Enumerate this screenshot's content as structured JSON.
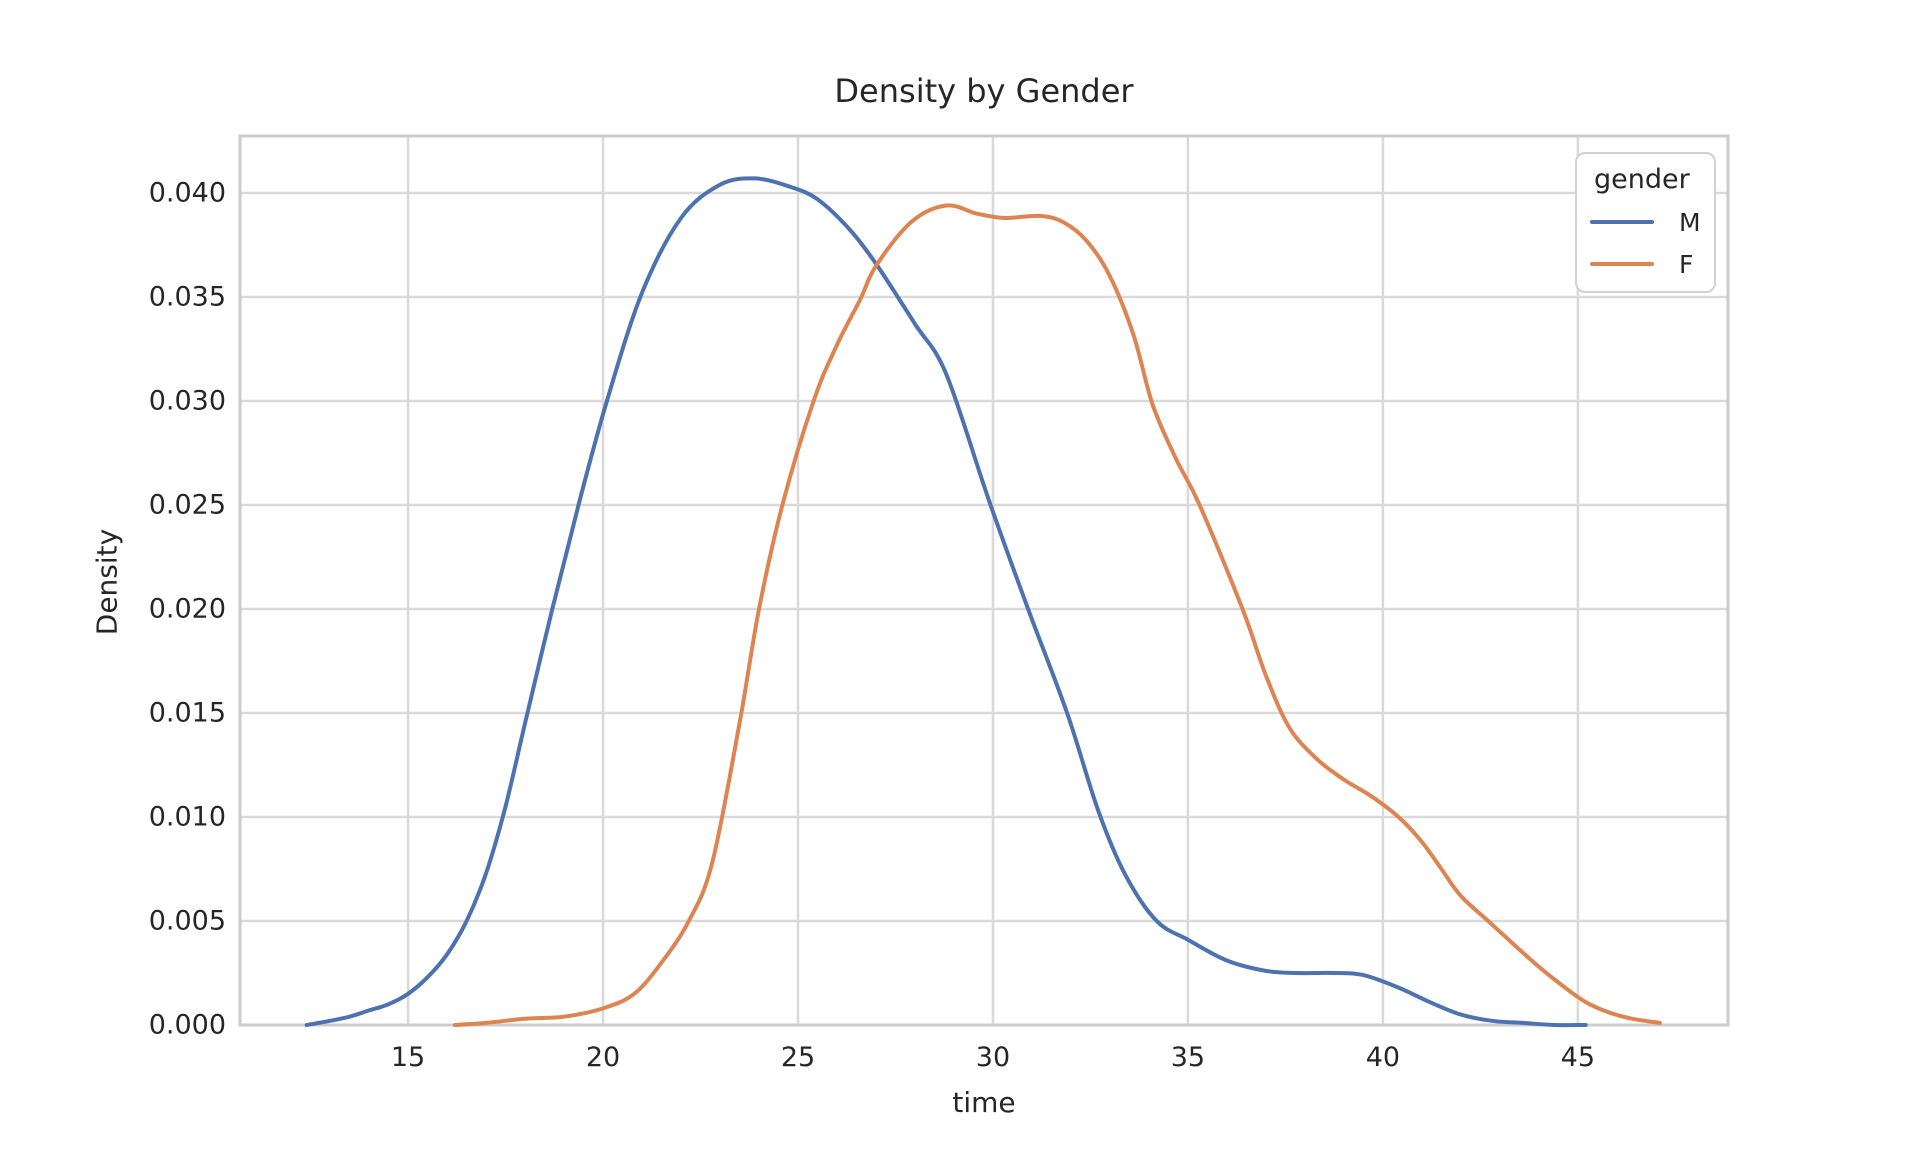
{
  "figure": {
    "title": "Density by Gender",
    "xlabel": "time",
    "ylabel": "Density",
    "background_color": "#ffffff",
    "text_color": "#262626",
    "grid_color": "#d9d9d9",
    "spine_color": "#cccccc"
  },
  "legend": {
    "title": "gender",
    "entries": [
      {
        "label": "M",
        "color": "#4C72B0"
      },
      {
        "label": "F",
        "color": "#DD8452"
      }
    ]
  },
  "chart_data": {
    "type": "line",
    "subtype": "kde-density",
    "title": "Density by Gender",
    "xlabel": "time",
    "ylabel": "Density",
    "xlim": [
      10.69,
      48.85
    ],
    "ylim": [
      0,
      0.04274
    ],
    "xticks": [
      15,
      20,
      25,
      30,
      35,
      40,
      45
    ],
    "yticks": [
      0,
      0.005,
      0.01,
      0.015,
      0.02,
      0.025,
      0.03,
      0.035,
      0.04
    ],
    "ytick_labels": [
      "0.000",
      "0.005",
      "0.010",
      "0.015",
      "0.020",
      "0.025",
      "0.030",
      "0.035",
      "0.040"
    ],
    "grid": true,
    "legend_title": "gender",
    "legend_position": "upper right",
    "series": [
      {
        "name": "M",
        "color": "#4C72B0",
        "x": [
          12.4,
          13.0,
          13.5,
          14.0,
          14.5,
          15.0,
          15.5,
          16.0,
          16.5,
          17.0,
          17.5,
          18.0,
          18.7,
          19.4,
          20.1,
          21.0,
          22.0,
          23.0,
          23.9,
          24.8,
          25.5,
          26.3,
          27.0,
          28.0,
          28.8,
          29.9,
          30.9,
          31.9,
          32.7,
          33.4,
          34.2,
          35.0,
          36.0,
          37.0,
          37.8,
          38.8,
          39.5,
          40.4,
          41.2,
          42.0,
          42.8,
          43.6,
          44.4,
          45.2
        ],
        "y": [
          0.0,
          0.0002,
          0.0004,
          0.0007,
          0.001,
          0.0015,
          0.0023,
          0.0034,
          0.005,
          0.0073,
          0.0105,
          0.0145,
          0.02,
          0.0252,
          0.03,
          0.0352,
          0.0388,
          0.0404,
          0.0407,
          0.0403,
          0.0397,
          0.0383,
          0.0366,
          0.0337,
          0.0313,
          0.0252,
          0.02,
          0.015,
          0.0103,
          0.0072,
          0.005,
          0.0041,
          0.0031,
          0.0026,
          0.0025,
          0.0025,
          0.0024,
          0.0018,
          0.0011,
          0.0005,
          0.0002,
          0.0001,
          0.0,
          0.0
        ]
      },
      {
        "name": "F",
        "color": "#DD8452",
        "x": [
          16.2,
          17.0,
          18.0,
          19.0,
          20.0,
          20.8,
          21.5,
          22.2,
          22.8,
          23.5,
          24.0,
          24.6,
          25.4,
          26.0,
          26.6,
          27.0,
          27.9,
          28.8,
          29.6,
          30.3,
          31.2,
          31.8,
          32.4,
          33.0,
          33.6,
          34.1,
          34.7,
          35.3,
          36.4,
          37.0,
          37.6,
          38.3,
          39.0,
          39.7,
          40.4,
          41.0,
          41.5,
          42.0,
          42.7,
          43.4,
          44.0,
          44.6,
          45.2,
          45.8,
          46.4,
          47.1
        ],
        "y": [
          0.0,
          0.0001,
          0.0003,
          0.0004,
          0.0008,
          0.0015,
          0.003,
          0.005,
          0.0078,
          0.0145,
          0.02,
          0.025,
          0.03,
          0.0327,
          0.0349,
          0.0365,
          0.0386,
          0.0394,
          0.039,
          0.0388,
          0.0389,
          0.0386,
          0.0377,
          0.036,
          0.0332,
          0.0298,
          0.0272,
          0.025,
          0.02,
          0.0168,
          0.0143,
          0.0128,
          0.0118,
          0.011,
          0.01,
          0.0088,
          0.0075,
          0.0062,
          0.005,
          0.0038,
          0.0028,
          0.0019,
          0.0011,
          0.0006,
          0.0003,
          0.0001
        ]
      }
    ]
  }
}
